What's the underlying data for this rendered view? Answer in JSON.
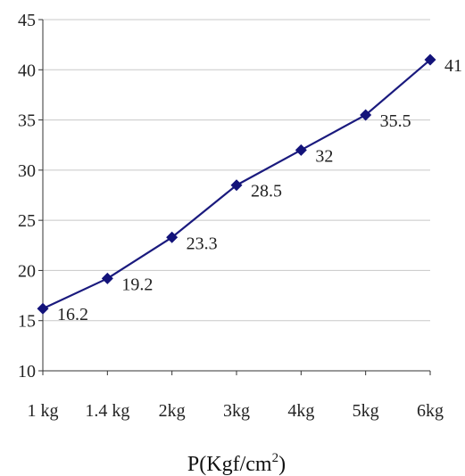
{
  "chart_data": {
    "type": "line",
    "title": "",
    "xlabel": "P(Kgf/cm",
    "xlabel_superscript": "2",
    "xlabel_suffix": ")",
    "ylabel": "",
    "categories": [
      "1 kg",
      "1.4 kg",
      "2kg",
      "3kg",
      "4kg",
      "5kg",
      "6kg"
    ],
    "series": [
      {
        "values": [
          16.2,
          19.2,
          23.3,
          28.5,
          32,
          35.5,
          41
        ]
      }
    ],
    "data_labels": [
      "16.2",
      "19.2",
      "23.3",
      "28.5",
      "32",
      "35.5",
      "41"
    ],
    "ylim": [
      10,
      45
    ],
    "yticks": [
      "10",
      "15",
      "20",
      "25",
      "30",
      "35",
      "40",
      "45"
    ],
    "grid": true,
    "legend": "none",
    "colors": {
      "line": "#1a1a7e",
      "marker": "#13137a",
      "grid": "#c8c8c8",
      "axis": "#333333"
    },
    "marker": "diamond"
  }
}
